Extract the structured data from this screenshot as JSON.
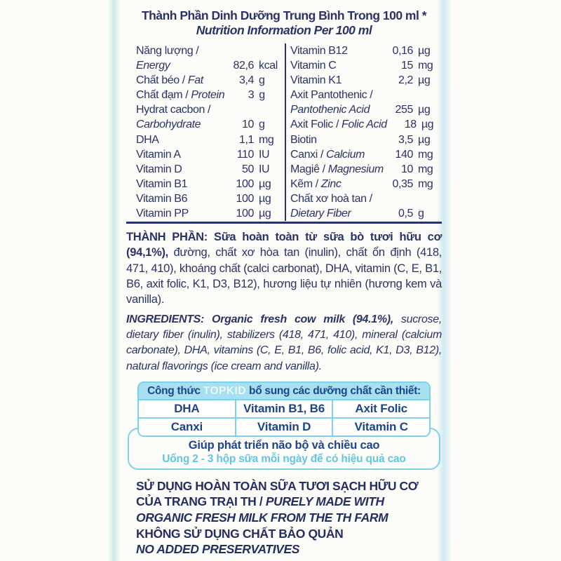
{
  "palette": {
    "ink_navy": "#2a3268",
    "topkid_navy": "#1d448c",
    "cyan_border": "#7dd1e8",
    "cyan_header_bg": "#a6e1ef",
    "cyan_light_text": "#63c6e0",
    "background": "#fcfcf8"
  },
  "header": {
    "title_vi": "Thành Phần Dinh Dưỡng Trung Bình Trong 100 ml *",
    "title_en": "Nutrition Information Per 100 ml"
  },
  "nutrition": {
    "left": [
      {
        "name": [
          {
            "t": "Năng lượng /"
          }
        ],
        "value": "",
        "unit": ""
      },
      {
        "name": [
          {
            "t": "Energy",
            "i": true
          }
        ],
        "value": "82,6",
        "unit": "kcal"
      },
      {
        "name": [
          {
            "t": "Chất béo / "
          },
          {
            "t": "Fat",
            "i": true
          }
        ],
        "value": "3,4",
        "unit": "g"
      },
      {
        "name": [
          {
            "t": "Chất đạm / "
          },
          {
            "t": "Protein",
            "i": true
          }
        ],
        "value": "3",
        "unit": "g"
      },
      {
        "name": [
          {
            "t": "Hydrat cacbon /"
          }
        ],
        "value": "",
        "unit": ""
      },
      {
        "name": [
          {
            "t": "Carbohydrate",
            "i": true
          }
        ],
        "value": "10",
        "unit": "g"
      },
      {
        "name": [
          {
            "t": "DHA"
          }
        ],
        "value": "1,1",
        "unit": "mg"
      },
      {
        "name": [
          {
            "t": "Vitamin A"
          }
        ],
        "value": "110",
        "unit": "IU"
      },
      {
        "name": [
          {
            "t": "Vitamin D"
          }
        ],
        "value": "50",
        "unit": "IU"
      },
      {
        "name": [
          {
            "t": "Vitamin B1"
          }
        ],
        "value": "100",
        "unit": "µg"
      },
      {
        "name": [
          {
            "t": "Vitamin B6"
          }
        ],
        "value": "100",
        "unit": "µg"
      },
      {
        "name": [
          {
            "t": "Vitamin PP"
          }
        ],
        "value": "100",
        "unit": "µg"
      }
    ],
    "right": [
      {
        "name": [
          {
            "t": "Vitamin B12"
          }
        ],
        "value": "0,16",
        "unit": "µg"
      },
      {
        "name": [
          {
            "t": "Vitamin C"
          }
        ],
        "value": "15",
        "unit": "mg"
      },
      {
        "name": [
          {
            "t": "Vitamin K1"
          }
        ],
        "value": "2,2",
        "unit": "µg"
      },
      {
        "name": [
          {
            "t": "Axit Pantothenic /"
          }
        ],
        "value": "",
        "unit": ""
      },
      {
        "name": [
          {
            "t": "Pantothenic Acid",
            "i": true
          }
        ],
        "value": "255",
        "unit": "µg"
      },
      {
        "name": [
          {
            "t": "Axit Folic / "
          },
          {
            "t": "Folic Acid",
            "i": true
          }
        ],
        "value": "18",
        "unit": "µg"
      },
      {
        "name": [
          {
            "t": "Biotin"
          }
        ],
        "value": "3,5",
        "unit": "µg"
      },
      {
        "name": [
          {
            "t": "Canxi / "
          },
          {
            "t": "Calcium",
            "i": true
          }
        ],
        "value": "140",
        "unit": "mg"
      },
      {
        "name": [
          {
            "t": "Magiê / "
          },
          {
            "t": "Magnesium",
            "i": true
          }
        ],
        "value": "10",
        "unit": "mg"
      },
      {
        "name": [
          {
            "t": "Kẽm / "
          },
          {
            "t": "Zinc",
            "i": true
          }
        ],
        "value": "0,35",
        "unit": "mg"
      },
      {
        "name": [
          {
            "t": "Chất xơ hoà tan /"
          }
        ],
        "value": "",
        "unit": ""
      },
      {
        "name": [
          {
            "t": "Dietary Fiber",
            "i": true
          }
        ],
        "value": "0,5",
        "unit": "g"
      }
    ]
  },
  "ingredients_vi": {
    "bold": "THÀNH PHẦN: Sữa hoàn toàn từ sữa bò tươi hữu cơ (94,1%),",
    "rest": " đường, chất xơ hòa tan (inulin), chất ổn định (418, 471, 410), khoáng chất (calci carbonat), DHA, vitamin (C, E, B1, B6, axit folic, K1, D3, B12), hương liệu tự nhiên (hương kem và vanilla)."
  },
  "ingredients_en": {
    "bold": "INGREDIENTS: Organic fresh cow milk (94.1%),",
    "rest": " sucrose, dietary fiber (inulin), stabilizers (418, 471, 410), mineral (calcium carbonate), DHA, vitamins (C, E, B1, B6, folic acid, K1, D3, B12), natural flavorings (ice cream and vanilla)."
  },
  "topkid": {
    "header_prefix": "Công thức ",
    "logo": "TOPKID",
    "header_suffix": " bổ sung các dưỡng chất cần thiết:",
    "rows": [
      [
        "DHA",
        "Vitamin B1, B6",
        "Axit Folic"
      ],
      [
        "Canxi",
        "Vitamin D",
        "Vitamin C"
      ]
    ],
    "benefit": "Giúp phát triển não bộ và chiều cao",
    "usage": "Uống 2 - 3 hộp sữa mỗi ngày để có hiệu quả cao"
  },
  "footer": {
    "lines": [
      [
        {
          "t": "SỬ DỤNG HOÀN TOÀN SỮA TƯƠI SẠCH HỮU CƠ"
        }
      ],
      [
        {
          "t": "CỦA TRANG TRẠI TH / "
        },
        {
          "t": "PURELY MADE WITH",
          "i": true
        }
      ],
      [
        {
          "t": "ORGANIC FRESH MILK FROM THE TH FARM",
          "i": true
        }
      ],
      [
        {
          "t": "KHÔNG SỬ DỤNG CHẤT BẢO QUẢN"
        }
      ],
      [
        {
          "t": "NO ADDED PRESERVATIVES",
          "i": true
        }
      ]
    ]
  }
}
